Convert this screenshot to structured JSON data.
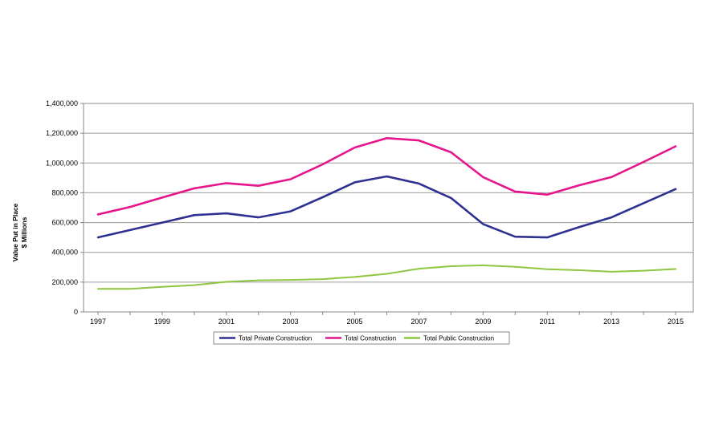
{
  "chart_data": {
    "type": "line",
    "ylabel_lines": [
      "Value Put in Place",
      "$ Millions"
    ],
    "x": [
      1997,
      1998,
      1999,
      2000,
      2001,
      2002,
      2003,
      2004,
      2005,
      2006,
      2007,
      2008,
      2009,
      2010,
      2011,
      2012,
      2013,
      2014,
      2015
    ],
    "x_tick_labels": [
      "1997",
      "1999",
      "2001",
      "2003",
      "2005",
      "2007",
      "2009",
      "2011",
      "2013",
      "2015"
    ],
    "y_tick_labels": [
      "0",
      "200,000",
      "400,000",
      "600,000",
      "800,000",
      "1,000,000",
      "1,200,000",
      "1,400,000"
    ],
    "ylim": [
      0,
      1400000
    ],
    "grid": true,
    "legend_position": "bottom",
    "series": [
      {
        "name": "Total Private Construction",
        "color": "#2e3192",
        "values": [
          500000,
          550000,
          600000,
          650000,
          662000,
          635000,
          675000,
          770000,
          870000,
          910000,
          862000,
          765000,
          590000,
          505000,
          500000,
          570000,
          635000,
          730000,
          825000
        ]
      },
      {
        "name": "Total Construction",
        "color": "#e6158c",
        "values": [
          655000,
          705000,
          768000,
          830000,
          865000,
          847000,
          891000,
          991000,
          1104000,
          1167000,
          1152000,
          1072000,
          905000,
          808000,
          788000,
          851000,
          905000,
          1007000,
          1112000
        ]
      },
      {
        "name": "Total Public Construction",
        "color": "#8dc63f",
        "values": [
          155000,
          155000,
          168000,
          180000,
          202000,
          212000,
          215000,
          220000,
          235000,
          256000,
          290000,
          307000,
          313000,
          303000,
          287000,
          280000,
          270000,
          277000,
          288000
        ]
      }
    ]
  }
}
